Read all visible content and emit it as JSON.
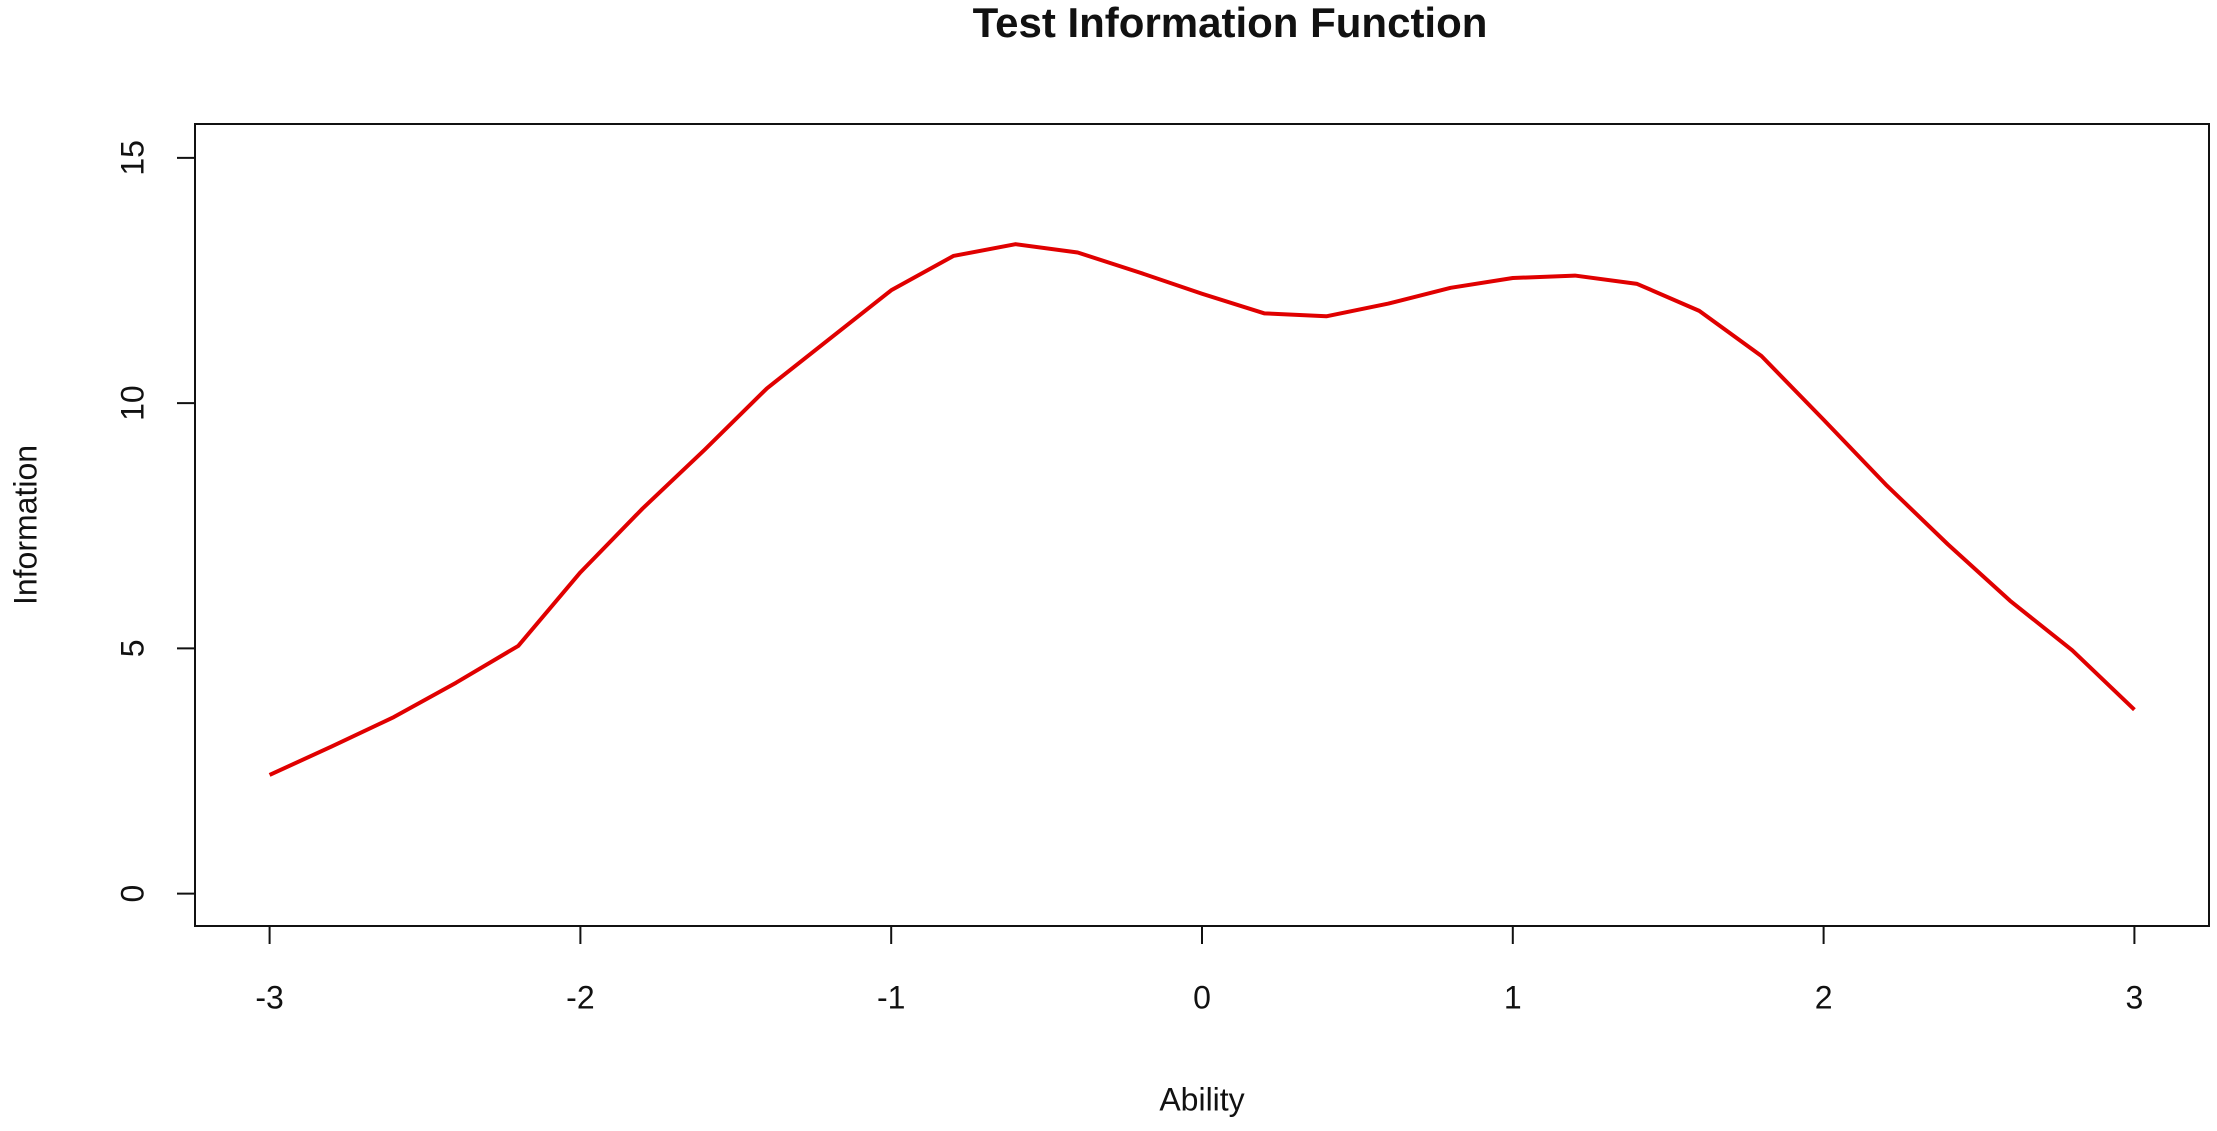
{
  "chart_data": {
    "type": "line",
    "title": "Test Information Function",
    "x_label": "Ability",
    "y_label": "Information",
    "x": [
      -3,
      -2.8,
      -2.6,
      -2.4,
      -2.2,
      -2,
      -1.8,
      -1.6,
      -1.4,
      -1.2,
      -1,
      -0.8,
      -0.6,
      -0.4,
      -0.2,
      0,
      0.2,
      0.4,
      0.6,
      0.8,
      1,
      1.2,
      1.4,
      1.6,
      1.8,
      2,
      2.2,
      2.4,
      2.6,
      2.8,
      3
    ],
    "series": [
      {
        "color": "#e00000",
        "values": [
          2.42,
          3.0,
          3.6,
          4.3,
          5.05,
          6.55,
          7.85,
          9.05,
          10.3,
          11.3,
          12.3,
          13.0,
          13.24,
          13.07,
          12.66,
          12.23,
          11.83,
          11.77,
          12.03,
          12.35,
          12.55,
          12.6,
          12.43,
          11.88,
          10.96,
          9.66,
          8.34,
          7.12,
          5.97,
          4.96,
          3.75
        ]
      }
    ],
    "xlim": [
      -3.24,
      3.24
    ],
    "ylim": [
      -0.66,
      15.69
    ],
    "xticks": [
      -3,
      -2,
      -1,
      0,
      1,
      2,
      3
    ],
    "yticks": [
      0,
      5,
      10,
      15
    ]
  }
}
